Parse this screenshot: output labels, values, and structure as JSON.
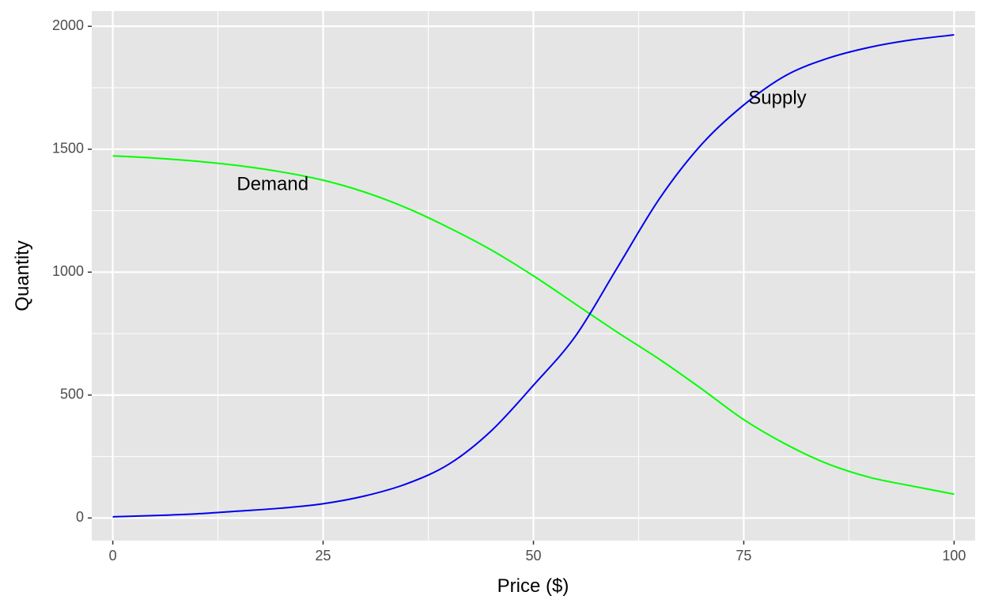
{
  "chart_data": {
    "type": "line",
    "xlabel": "Price ($)",
    "ylabel": "Quantity",
    "xlim": [
      -2.5,
      102.5
    ],
    "ylim": [
      -92,
      2062
    ],
    "x_ticks": [
      0,
      25,
      50,
      75,
      100
    ],
    "y_ticks": [
      0,
      500,
      1000,
      1500,
      2000
    ],
    "x_minor_ticks": [
      12.5,
      37.5,
      62.5,
      87.5
    ],
    "y_minor_ticks": [
      250,
      750,
      1250,
      1750
    ],
    "grid": true,
    "background": "#e5e5e5",
    "grid_color": "#ffffff",
    "series": [
      {
        "color": "#00ff00",
        "x": [
          0,
          5,
          10,
          15,
          20,
          25,
          30,
          35,
          40,
          45,
          50,
          55,
          60,
          65,
          70,
          75,
          80,
          85,
          90,
          95,
          100
        ],
        "y": [
          1473,
          1464,
          1451,
          1433,
          1408,
          1374,
          1325,
          1260,
          1180,
          1090,
          985,
          870,
          755,
          645,
          525,
          400,
          300,
          220,
          165,
          130,
          97
        ]
      },
      {
        "color": "#0000ee",
        "x": [
          0,
          5,
          10,
          15,
          20,
          25,
          30,
          35,
          40,
          45,
          50,
          55,
          60,
          65,
          70,
          75,
          80,
          85,
          90,
          95,
          100
        ],
        "y": [
          5,
          10,
          17,
          28,
          40,
          58,
          90,
          140,
          220,
          355,
          540,
          740,
          1020,
          1300,
          1520,
          1680,
          1800,
          1870,
          1915,
          1945,
          1965
        ]
      }
    ],
    "annotations": [
      {
        "text": "Demand",
        "x": 19,
        "y": 1355
      },
      {
        "text": "Supply",
        "x": 79,
        "y": 1705
      }
    ]
  }
}
